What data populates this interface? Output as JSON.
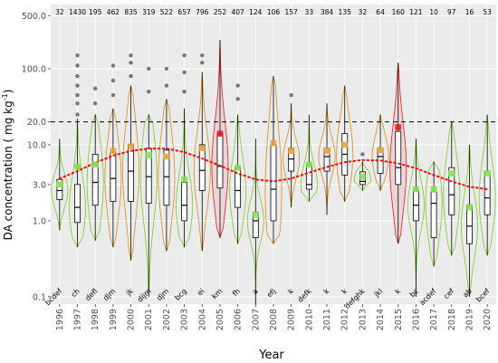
{
  "chart_data": {
    "type": "violin",
    "xlabel": "Year",
    "ylabel_main": "DA concentration ( mg kg",
    "ylabel_sup": "-1",
    "ylabel_close": ")",
    "yscale": "log",
    "ylim": [
      0.08,
      700
    ],
    "yticks": [
      0.1,
      1.0,
      3.0,
      10.0,
      20.0,
      100.0,
      500.0
    ],
    "ytick_labels": [
      "0.1",
      "1.0",
      "3.0",
      "10.0",
      "20.0",
      "100.0",
      "500.0"
    ],
    "threshold": 20,
    "colors": {
      "panel": "#ebebeb",
      "grid": "#ffffff",
      "violin_green": "#7acc29",
      "violin_orange": "#d98c1a",
      "violin_red": "#e41a1c",
      "mean_green": "#7fe04a",
      "mean_orange": "#e6a33a",
      "mean_red": "#e41a1c",
      "trend": "#ff0000",
      "outlier": "#4d4d4d"
    },
    "years": [
      {
        "year": "1996",
        "n": "32",
        "letters": "bcdef",
        "color": "green",
        "min": 0.75,
        "q1": 1.9,
        "median": 2.5,
        "q3": 3.5,
        "max": 12,
        "mean": 3.0,
        "outliers": []
      },
      {
        "year": "1997",
        "n": "1430",
        "letters": "ch",
        "color": "green",
        "min": 0.45,
        "q1": 0.95,
        "median": 1.5,
        "q3": 3.0,
        "max": 22,
        "mean": 5.2,
        "outliers": [
          25,
          35,
          45,
          60,
          80,
          110,
          150
        ]
      },
      {
        "year": "1998",
        "n": "195",
        "letters": "defl",
        "color": "green",
        "min": 0.55,
        "q1": 1.6,
        "median": 3.2,
        "q3": 7.5,
        "max": 25,
        "mean": 5.5,
        "outliers": [
          35,
          55
        ]
      },
      {
        "year": "1999",
        "n": "462",
        "letters": "djm",
        "color": "orange",
        "min": 0.45,
        "q1": 1.8,
        "median": 3.6,
        "q3": 8.0,
        "max": 30,
        "mean": 8.3,
        "outliers": [
          45,
          70,
          110
        ]
      },
      {
        "year": "2000",
        "n": "835",
        "letters": "jk",
        "color": "orange",
        "min": 0.3,
        "q1": 1.8,
        "median": 4.5,
        "q3": 10,
        "max": 60,
        "mean": 9.5,
        "outliers": [
          80,
          120,
          150
        ]
      },
      {
        "year": "2001",
        "n": "319",
        "letters": "dijm",
        "color": "green",
        "min": 0.1,
        "q1": 1.7,
        "median": 3.8,
        "q3": 9,
        "max": 25,
        "mean": 7.3,
        "outliers": [
          50,
          100
        ]
      },
      {
        "year": "2002",
        "n": "522",
        "letters": "djm",
        "color": "orange",
        "min": 0.4,
        "q1": 1.6,
        "median": 3.8,
        "q3": 8.5,
        "max": 40,
        "mean": 7.0,
        "outliers": [
          60,
          100
        ]
      },
      {
        "year": "2003",
        "n": "657",
        "letters": "bcg",
        "color": "green",
        "min": 0.45,
        "q1": 1.0,
        "median": 1.6,
        "q3": 3.2,
        "max": 30,
        "mean": 3.5,
        "outliers": [
          50,
          90,
          150
        ]
      },
      {
        "year": "2004",
        "n": "796",
        "letters": "ei",
        "color": "orange",
        "min": 0.4,
        "q1": 2.5,
        "median": 4.6,
        "q3": 10,
        "max": 90,
        "mean": 9.0,
        "outliers": [
          120,
          150
        ]
      },
      {
        "year": "2005",
        "n": "252",
        "letters": "km",
        "color": "red",
        "min": 0.6,
        "q1": 2.7,
        "median": 5.2,
        "q3": 14,
        "max": 240,
        "mean": 14.0,
        "outliers": []
      },
      {
        "year": "2006",
        "n": "407",
        "letters": "fh",
        "color": "green",
        "min": 0.5,
        "q1": 1.5,
        "median": 2.5,
        "q3": 5.0,
        "max": 25,
        "mean": 5.0,
        "outliers": [
          40,
          60
        ]
      },
      {
        "year": "2007",
        "n": "124",
        "letters": "a",
        "color": "green",
        "min": 0.08,
        "q1": 0.6,
        "median": 1.0,
        "q3": 1.3,
        "max": 12,
        "mean": 1.2,
        "outliers": []
      },
      {
        "year": "2008",
        "n": "106",
        "letters": "efj",
        "color": "orange",
        "min": 0.5,
        "q1": 1.0,
        "median": 2.6,
        "q3": 10,
        "max": 80,
        "mean": 10.5,
        "outliers": []
      },
      {
        "year": "2009",
        "n": "157",
        "letters": "k",
        "color": "orange",
        "min": 1.5,
        "q1": 4.5,
        "median": 6.5,
        "q3": 9,
        "max": 35,
        "mean": 8.3,
        "outliers": [
          45
        ]
      },
      {
        "year": "2010",
        "n": "33",
        "letters": "defk",
        "color": "green",
        "min": 1.8,
        "q1": 2.6,
        "median": 3.0,
        "q3": 5.5,
        "max": 25,
        "mean": 5.5,
        "outliers": []
      },
      {
        "year": "2011",
        "n": "384",
        "letters": "k",
        "color": "orange",
        "min": 1.2,
        "q1": 4.5,
        "median": 7.0,
        "q3": 9,
        "max": 35,
        "mean": 8.3,
        "outliers": []
      },
      {
        "year": "2012",
        "n": "135",
        "letters": "k",
        "color": "orange",
        "min": 1.8,
        "q1": 4.0,
        "median": 7.5,
        "q3": 14,
        "max": 60,
        "mean": 10.0,
        "outliers": []
      },
      {
        "year": "2013",
        "n": "32",
        "letters": "defghk",
        "color": "green",
        "min": 2.5,
        "q1": 3.0,
        "median": 3.3,
        "q3": 4.4,
        "max": 6,
        "mean": 3.8,
        "outliers": [
          7.5
        ]
      },
      {
        "year": "2014",
        "n": "64",
        "letters": "jkl",
        "color": "orange",
        "min": 2.5,
        "q1": 4.2,
        "median": 7.0,
        "q3": 9,
        "max": 25,
        "mean": 8.5,
        "outliers": []
      },
      {
        "year": "2015",
        "n": "160",
        "letters": "k",
        "color": "red",
        "min": 0.5,
        "q1": 3.0,
        "median": 5.0,
        "q3": 15,
        "max": 120,
        "mean": 17.0,
        "outliers": []
      },
      {
        "year": "2016",
        "n": "121",
        "letters": "bc",
        "color": "green",
        "min": 0.1,
        "q1": 1.0,
        "median": 1.6,
        "q3": 2.5,
        "max": 12,
        "mean": 2.6,
        "outliers": []
      },
      {
        "year": "2017",
        "n": "10",
        "letters": "acdef",
        "color": "green",
        "min": 0.25,
        "q1": 0.6,
        "median": 1.7,
        "q3": 2.4,
        "max": 6,
        "mean": 2.6,
        "outliers": []
      },
      {
        "year": "2018",
        "n": "97",
        "letters": "cef",
        "color": "green",
        "min": 0.35,
        "q1": 1.2,
        "median": 2.2,
        "q3": 5.0,
        "max": 20,
        "mean": 4.2,
        "outliers": []
      },
      {
        "year": "2019",
        "n": "16",
        "letters": "ab",
        "color": "green",
        "min": 0.1,
        "q1": 0.5,
        "median": 0.85,
        "q3": 1.6,
        "max": 10,
        "mean": 1.5,
        "outliers": []
      },
      {
        "year": "2020",
        "n": "53",
        "letters": "bcef",
        "color": "green",
        "min": 0.35,
        "q1": 1.2,
        "median": 2.0,
        "q3": 4.5,
        "max": 25,
        "mean": 4.2,
        "outliers": []
      }
    ],
    "trend": [
      3.6,
      4.5,
      5.8,
      7.2,
      8.3,
      8.9,
      8.9,
      8.0,
      6.6,
      5.3,
      4.2,
      3.5,
      3.3,
      3.6,
      4.3,
      5.1,
      5.9,
      6.3,
      6.2,
      5.7,
      4.9,
      4.0,
      3.3,
      2.8,
      2.6
    ]
  }
}
